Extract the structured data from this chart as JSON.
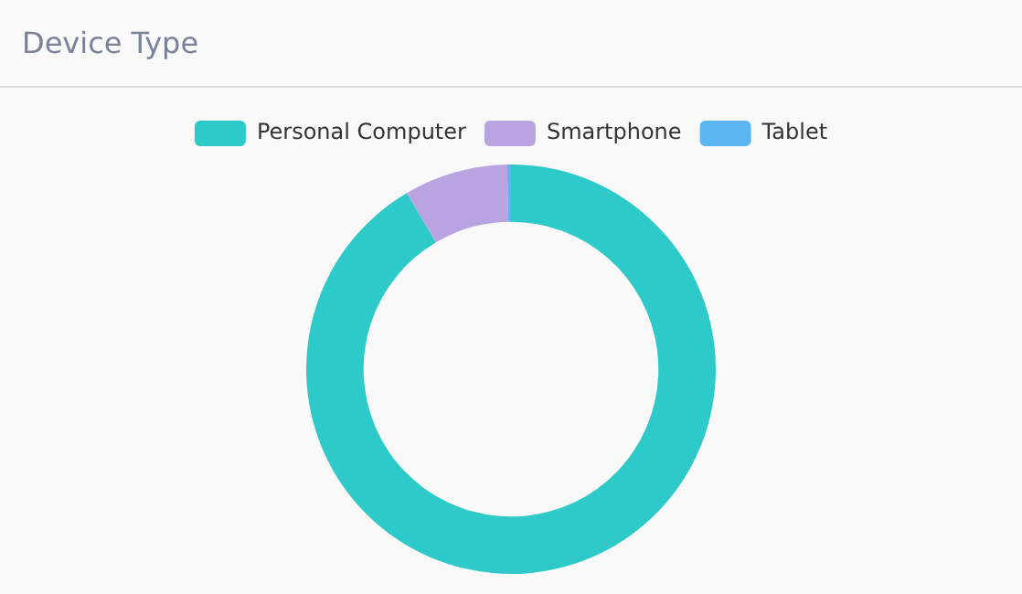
{
  "chart_data": {
    "type": "donut",
    "title": "Device Type",
    "categories": [
      "Personal Computer",
      "Smartphone",
      "Tablet"
    ],
    "values": [
      91.5,
      8.2,
      0.3
    ],
    "colors": [
      "#2ec9c9",
      "#b9a3e0",
      "#5bb5f0"
    ],
    "legend": "top"
  }
}
